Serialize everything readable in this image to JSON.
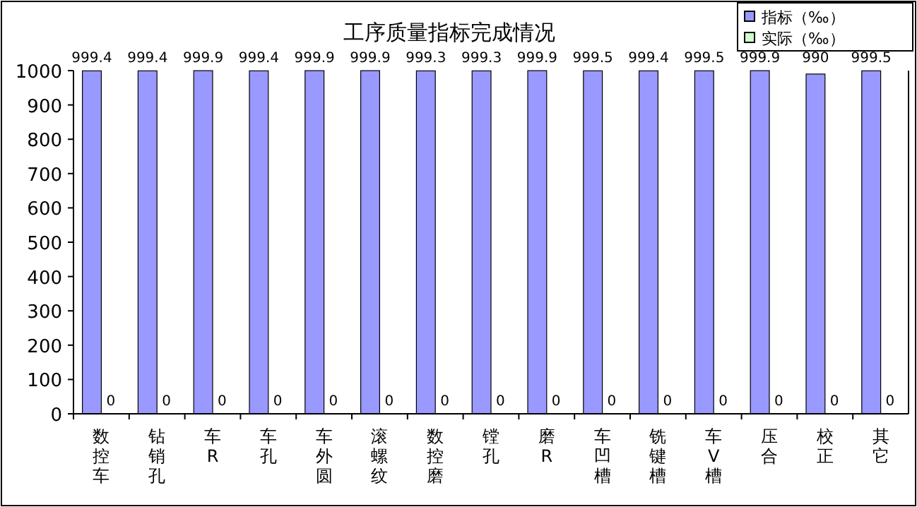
{
  "chart_data": {
    "type": "bar",
    "title": "工序质量指标完成情况",
    "categories": [
      "数控车",
      "钻销孔",
      "车R",
      "车孔",
      "车外圆",
      "滚螺纹",
      "数控磨",
      "镗孔",
      "磨R",
      "车凹槽",
      "铣键槽",
      "车V槽",
      "压合",
      "校正",
      "其它"
    ],
    "series": [
      {
        "name": "指标（‰）",
        "color": "#9999ff",
        "values": [
          999.4,
          999.4,
          999.9,
          999.4,
          999.9,
          999.9,
          999.3,
          999.3,
          999.9,
          999.5,
          999.4,
          999.5,
          999.9,
          990,
          999.5
        ]
      },
      {
        "name": "实际（‰）",
        "color": "#ccffcc",
        "values": [
          0,
          0,
          0,
          0,
          0,
          0,
          0,
          0,
          0,
          0,
          0,
          0,
          0,
          0,
          0
        ]
      }
    ],
    "ylim": [
      0,
      1000
    ],
    "yticks": [
      0,
      100,
      200,
      300,
      400,
      500,
      600,
      700,
      800,
      900,
      1000
    ],
    "data_labels": true,
    "legend": "top right",
    "grid": false
  }
}
